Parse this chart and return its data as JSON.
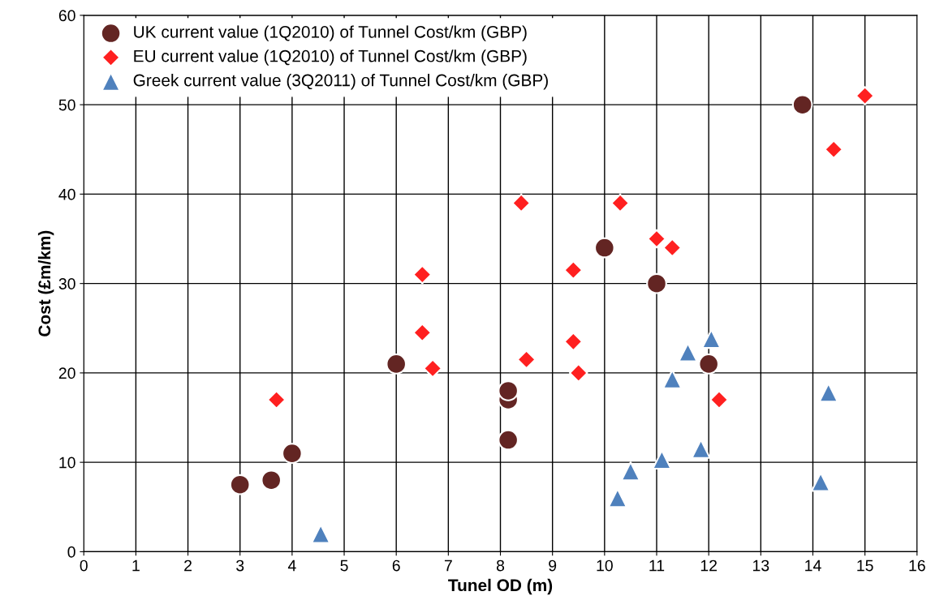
{
  "chart_data": {
    "type": "scatter",
    "xlabel": "Tunel OD (m)",
    "ylabel": "Cost (£m/km)",
    "xlim": [
      0,
      16
    ],
    "xticks": [
      0,
      1,
      2,
      3,
      4,
      5,
      6,
      7,
      8,
      9,
      10,
      11,
      12,
      13,
      14,
      15,
      16
    ],
    "ylim": [
      0,
      60
    ],
    "yticks": [
      0,
      10,
      20,
      30,
      40,
      50,
      60
    ],
    "grid": true,
    "legend": "top left",
    "series": [
      {
        "name": "UK current value (1Q2010) of Tunnel Cost/km (GBP)",
        "color": "#632523",
        "marker": "circle",
        "x": [
          3,
          3.6,
          4,
          6,
          8.15,
          8.15,
          8.15,
          10,
          11,
          12,
          13.8
        ],
        "values": [
          7.5,
          8,
          11,
          21,
          17,
          18,
          12.5,
          34,
          30,
          21,
          50
        ]
      },
      {
        "name": "EU current value (1Q2010) of Tunnel Cost/km (GBP)",
        "color": "#ff2020",
        "marker": "diamond",
        "x": [
          3.7,
          6.5,
          6.5,
          6.7,
          8.4,
          8.5,
          9.4,
          9.4,
          9.5,
          10.3,
          11,
          11.3,
          12.2,
          14.4,
          15
        ],
        "values": [
          17,
          31,
          24.5,
          20.5,
          39,
          21.5,
          31.5,
          23.5,
          20,
          39,
          35,
          34,
          17,
          45,
          51
        ]
      },
      {
        "name": "Greek current value (3Q2011) of Tunnel Cost/km (GBP)",
        "color": "#4f81bd",
        "marker": "triangle",
        "x": [
          4.55,
          10.25,
          10.5,
          11.1,
          11.3,
          11.6,
          11.85,
          12.05,
          14.15,
          14.3
        ],
        "values": [
          2,
          6,
          9,
          10.3,
          19.3,
          22.3,
          11.5,
          23.8,
          7.8,
          17.8
        ]
      }
    ]
  }
}
